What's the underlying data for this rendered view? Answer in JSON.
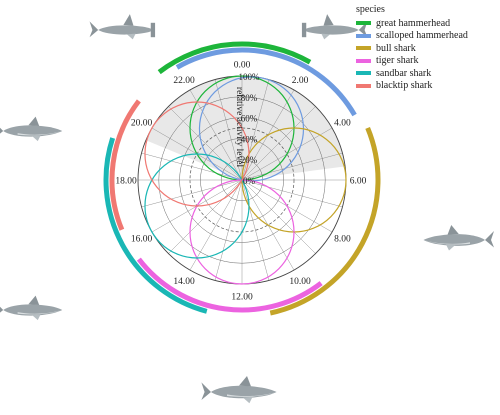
{
  "chart_data": {
    "type": "polar-line",
    "title": "",
    "radial_label": "relative activity level",
    "radial_ticks": [
      "0%",
      "20%",
      "40%",
      "60%",
      "80%",
      "100%"
    ],
    "radial_values": [
      0,
      20,
      40,
      60,
      80,
      100
    ],
    "angular_ticks": [
      "0.00",
      "2.00",
      "4.00",
      "6.00",
      "8.00",
      "10.00",
      "12.00",
      "14.00",
      "16.00",
      "18.00",
      "20.00",
      "22.00"
    ],
    "angular_values_hours": [
      0,
      2,
      4,
      6,
      8,
      10,
      12,
      14,
      16,
      18,
      20,
      22
    ],
    "night_shading_hours": [
      19.5,
      5.5
    ],
    "dashed_circle_percent": 50,
    "legend": {
      "title": "species",
      "placement": "top-right"
    },
    "series": [
      {
        "name": "great hammerhead",
        "color": "#1db53a",
        "peak_hour": 0.0,
        "peak_value": 100,
        "arc_hours": [
          21.5,
          2.0
        ]
      },
      {
        "name": "scalloped hammerhead",
        "color": "#6e9be0",
        "peak_hour": 0.7,
        "peak_value": 100,
        "arc_hours": [
          22.0,
          4.0
        ]
      },
      {
        "name": "bull shark",
        "color": "#c4a428",
        "peak_hour": 6.0,
        "peak_value": 100,
        "arc_hours": [
          4.5,
          11.2
        ]
      },
      {
        "name": "tiger shark",
        "color": "#ec63e0",
        "peak_hour": 12.0,
        "peak_value": 100,
        "arc_hours": [
          9.5,
          15.5
        ]
      },
      {
        "name": "sandbar shark",
        "color": "#1ab7b5",
        "peak_hour": 16.0,
        "peak_value": 100,
        "arc_hours": [
          13.0,
          19.2
        ]
      },
      {
        "name": "blacktip shark",
        "color": "#f07872",
        "peak_hour": 20.0,
        "peak_value": 100,
        "arc_hours": [
          16.5,
          20.5
        ]
      }
    ]
  }
}
